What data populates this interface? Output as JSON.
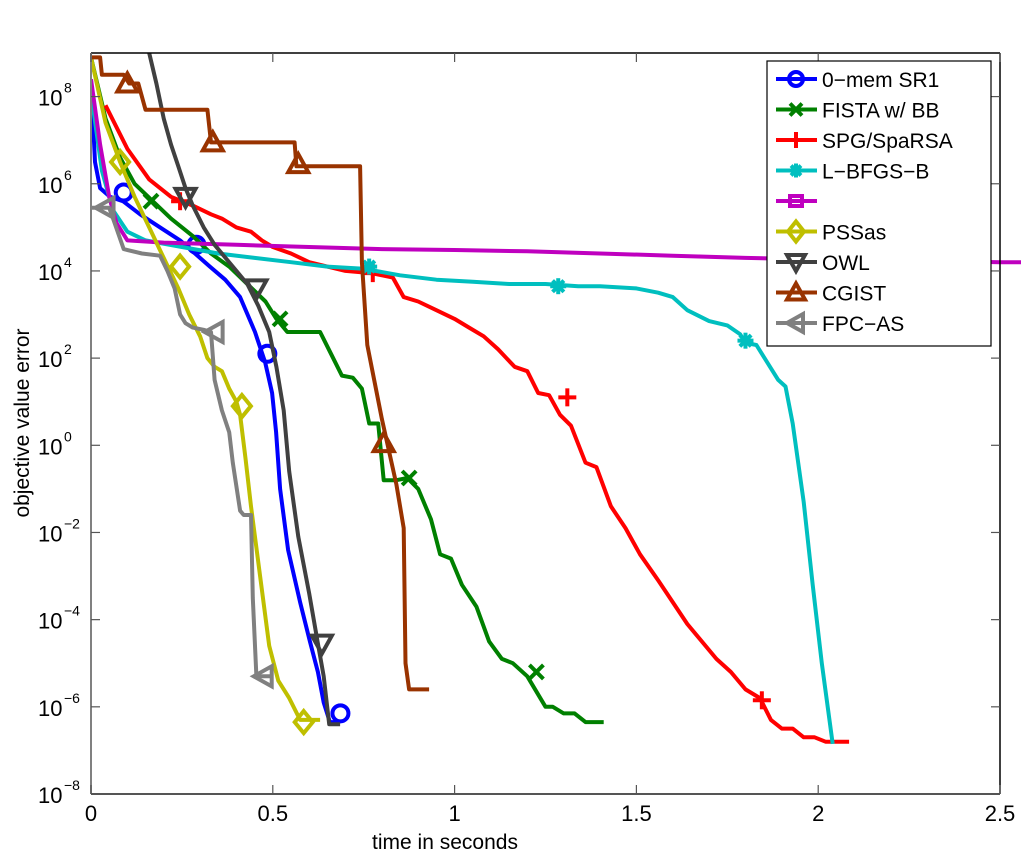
{
  "chart_data": {
    "type": "line",
    "title": "",
    "xlabel": "time in seconds",
    "ylabel": "objective value error",
    "xscale": "linear",
    "yscale": "log",
    "xlim": [
      0,
      2.5
    ],
    "ylim": [
      1e-08,
      1000000000.0
    ],
    "xticks": [
      0,
      0.5,
      1,
      1.5,
      2,
      2.5
    ],
    "xtick_labels": [
      "0",
      "0.5",
      "1",
      "1.5",
      "2",
      "2.5"
    ],
    "yticks_exponent": [
      -8,
      -6,
      -4,
      -2,
      0,
      2,
      4,
      6,
      8
    ],
    "ytick_labels": [
      "10^-8",
      "10^-6",
      "10^-4",
      "10^-2",
      "10^0",
      "10^2",
      "10^4",
      "10^6",
      "10^8"
    ],
    "grid": false,
    "legend_position": "upper right",
    "series": [
      {
        "name": "0−mem SR1",
        "color": "#0000ff",
        "marker": "circle",
        "points_log10": [
          [
            0,
            8.4
          ],
          [
            0.011,
            6.5
          ],
          [
            0.025,
            5.9
          ],
          [
            0.052,
            5.7
          ],
          [
            0.088,
            5.6
          ],
          [
            0.135,
            5.3
          ],
          [
            0.19,
            5.0
          ],
          [
            0.245,
            4.7
          ],
          [
            0.286,
            4.4
          ],
          [
            0.327,
            4.1
          ],
          [
            0.369,
            3.8
          ],
          [
            0.41,
            3.4
          ],
          [
            0.451,
            2.6
          ],
          [
            0.479,
            1.9
          ],
          [
            0.498,
            1.2
          ],
          [
            0.509,
            0.3
          ],
          [
            0.52,
            -1.0
          ],
          [
            0.542,
            -2.4
          ],
          [
            0.575,
            -3.6
          ],
          [
            0.602,
            -4.5
          ],
          [
            0.624,
            -5.2
          ],
          [
            0.64,
            -5.9
          ],
          [
            0.657,
            -6.35
          ],
          [
            0.685,
            -6.35
          ]
        ],
        "markers_log10": [
          [
            0.09,
            5.8
          ],
          [
            0.29,
            4.6
          ],
          [
            0.485,
            2.1
          ],
          [
            0.686,
            -6.15
          ]
        ]
      },
      {
        "name": "FISTA w/ BB",
        "color": "#008000",
        "marker": "x",
        "points_log10": [
          [
            0,
            8.9
          ],
          [
            0.04,
            7.5
          ],
          [
            0.08,
            6.6
          ],
          [
            0.12,
            6.0
          ],
          [
            0.17,
            5.6
          ],
          [
            0.22,
            5.2
          ],
          [
            0.28,
            4.8
          ],
          [
            0.33,
            4.4
          ],
          [
            0.38,
            4.1
          ],
          [
            0.43,
            3.7
          ],
          [
            0.48,
            3.3
          ],
          [
            0.51,
            2.9
          ],
          [
            0.54,
            2.6
          ],
          [
            0.63,
            2.6
          ],
          [
            0.66,
            2.1
          ],
          [
            0.69,
            1.6
          ],
          [
            0.72,
            1.55
          ],
          [
            0.745,
            1.3
          ],
          [
            0.765,
            0.5
          ],
          [
            0.79,
            0.5
          ],
          [
            0.805,
            -0.8
          ],
          [
            0.84,
            -0.8
          ],
          [
            0.87,
            -0.75
          ],
          [
            0.9,
            -1.0
          ],
          [
            0.935,
            -1.7
          ],
          [
            0.96,
            -2.5
          ],
          [
            0.99,
            -2.6
          ],
          [
            1.02,
            -3.2
          ],
          [
            1.06,
            -3.7
          ],
          [
            1.095,
            -4.5
          ],
          [
            1.13,
            -4.9
          ],
          [
            1.16,
            -5.0
          ],
          [
            1.2,
            -5.3
          ],
          [
            1.25,
            -6.0
          ],
          [
            1.27,
            -6.0
          ],
          [
            1.3,
            -6.15
          ],
          [
            1.33,
            -6.15
          ],
          [
            1.36,
            -6.35
          ],
          [
            1.41,
            -6.35
          ]
        ],
        "markers_log10": [
          [
            0.165,
            5.6
          ],
          [
            0.52,
            2.9
          ],
          [
            0.875,
            -0.75
          ],
          [
            1.225,
            -5.2
          ]
        ]
      },
      {
        "name": "SPG/SpaRSA",
        "color": "#ff0000",
        "marker": "plus",
        "points_log10": [
          [
            0.04,
            7.8
          ],
          [
            0.1,
            6.8
          ],
          [
            0.16,
            6.1
          ],
          [
            0.22,
            5.7
          ],
          [
            0.28,
            5.5
          ],
          [
            0.33,
            5.3
          ],
          [
            0.36,
            5.2
          ],
          [
            0.4,
            5.0
          ],
          [
            0.44,
            4.9
          ],
          [
            0.47,
            4.7
          ],
          [
            0.5,
            4.55
          ],
          [
            0.55,
            4.4
          ],
          [
            0.6,
            4.2
          ],
          [
            0.65,
            4.1
          ],
          [
            0.7,
            4.0
          ],
          [
            0.77,
            3.95
          ],
          [
            0.83,
            3.85
          ],
          [
            0.86,
            3.4
          ],
          [
            0.9,
            3.3
          ],
          [
            0.95,
            3.1
          ],
          [
            1.0,
            2.9
          ],
          [
            1.04,
            2.7
          ],
          [
            1.08,
            2.5
          ],
          [
            1.12,
            2.2
          ],
          [
            1.165,
            1.8
          ],
          [
            1.2,
            1.7
          ],
          [
            1.23,
            1.2
          ],
          [
            1.26,
            1.15
          ],
          [
            1.29,
            0.7
          ],
          [
            1.32,
            0.45
          ],
          [
            1.36,
            -0.4
          ],
          [
            1.39,
            -0.5
          ],
          [
            1.43,
            -1.4
          ],
          [
            1.47,
            -1.9
          ],
          [
            1.51,
            -2.5
          ],
          [
            1.56,
            -3.1
          ],
          [
            1.6,
            -3.6
          ],
          [
            1.64,
            -4.1
          ],
          [
            1.68,
            -4.5
          ],
          [
            1.72,
            -4.9
          ],
          [
            1.76,
            -5.2
          ],
          [
            1.8,
            -5.6
          ],
          [
            1.84,
            -5.8
          ],
          [
            1.87,
            -6.3
          ],
          [
            1.9,
            -6.5
          ],
          [
            1.93,
            -6.5
          ],
          [
            1.96,
            -6.7
          ],
          [
            1.99,
            -6.7
          ],
          [
            2.02,
            -6.8
          ],
          [
            2.085,
            -6.8
          ]
        ],
        "markers_log10": [
          [
            0.245,
            5.6
          ],
          [
            0.775,
            3.95
          ],
          [
            1.31,
            1.1
          ],
          [
            1.845,
            -5.85
          ]
        ]
      },
      {
        "name": "L−BFGS−B",
        "color": "#00bfbf",
        "marker": "asterisk",
        "points_log10": [
          [
            0,
            8.1
          ],
          [
            0.03,
            6.3
          ],
          [
            0.06,
            5.4
          ],
          [
            0.1,
            4.9
          ],
          [
            0.15,
            4.7
          ],
          [
            0.25,
            4.55
          ],
          [
            0.35,
            4.4
          ],
          [
            0.45,
            4.3
          ],
          [
            0.55,
            4.2
          ],
          [
            0.65,
            4.1
          ],
          [
            0.75,
            4.05
          ],
          [
            0.85,
            3.9
          ],
          [
            0.95,
            3.8
          ],
          [
            1.05,
            3.75
          ],
          [
            1.15,
            3.7
          ],
          [
            1.25,
            3.7
          ],
          [
            1.34,
            3.65
          ],
          [
            1.4,
            3.65
          ],
          [
            1.5,
            3.6
          ],
          [
            1.56,
            3.5
          ],
          [
            1.6,
            3.4
          ],
          [
            1.64,
            3.1
          ],
          [
            1.7,
            2.85
          ],
          [
            1.75,
            2.75
          ],
          [
            1.785,
            2.55
          ],
          [
            1.8,
            2.35
          ],
          [
            1.83,
            2.3
          ],
          [
            1.86,
            1.9
          ],
          [
            1.89,
            1.5
          ],
          [
            1.91,
            1.35
          ],
          [
            1.93,
            0.5
          ],
          [
            1.96,
            -1.3
          ],
          [
            1.985,
            -3.2
          ],
          [
            2.01,
            -5.0
          ],
          [
            2.04,
            -6.85
          ]
        ],
        "markers_log10": [
          [
            0.765,
            4.1
          ],
          [
            1.285,
            3.65
          ],
          [
            1.8,
            2.4
          ]
        ]
      },
      {
        "name": "",
        "color": "#bf00bf",
        "marker": "square",
        "points_log10": [
          [
            0,
            8.4
          ],
          [
            0.025,
            6.9
          ],
          [
            0.05,
            5.7
          ],
          [
            0.07,
            5.1
          ],
          [
            0.1,
            4.7
          ],
          [
            0.2,
            4.65
          ],
          [
            0.4,
            4.6
          ],
          [
            0.6,
            4.55
          ],
          [
            0.8,
            4.5
          ],
          [
            1.0,
            4.48
          ],
          [
            1.2,
            4.45
          ],
          [
            1.4,
            4.4
          ],
          [
            1.6,
            4.35
          ],
          [
            1.8,
            4.3
          ],
          [
            2.0,
            4.27
          ],
          [
            2.2,
            4.25
          ],
          [
            2.5,
            4.2
          ]
        ],
        "markers_log10": []
      },
      {
        "name": "PSSas",
        "color": "#bfbf00",
        "marker": "diamond",
        "points_log10": [
          [
            0,
            8.9
          ],
          [
            0.04,
            7.4
          ],
          [
            0.08,
            6.5
          ],
          [
            0.12,
            5.7
          ],
          [
            0.16,
            5.0
          ],
          [
            0.2,
            4.3
          ],
          [
            0.24,
            3.6
          ],
          [
            0.27,
            3.0
          ],
          [
            0.3,
            2.5
          ],
          [
            0.32,
            2.0
          ],
          [
            0.34,
            1.8
          ],
          [
            0.36,
            1.7
          ],
          [
            0.38,
            1.3
          ],
          [
            0.4,
            1.0
          ],
          [
            0.41,
            0.7
          ],
          [
            0.425,
            -0.3
          ],
          [
            0.44,
            -1.4
          ],
          [
            0.465,
            -3.0
          ],
          [
            0.49,
            -4.6
          ],
          [
            0.515,
            -5.4
          ],
          [
            0.545,
            -5.8
          ],
          [
            0.575,
            -6.3
          ],
          [
            0.63,
            -6.3
          ]
        ],
        "markers_log10": [
          [
            0.08,
            6.5
          ],
          [
            0.245,
            4.1
          ],
          [
            0.415,
            0.9
          ],
          [
            0.585,
            -6.35
          ]
        ]
      },
      {
        "name": "OWL",
        "color": "#404040",
        "marker": "triangle-down",
        "points_log10": [
          [
            0.16,
            9.0
          ],
          [
            0.18,
            8.3
          ],
          [
            0.2,
            7.5
          ],
          [
            0.22,
            6.9
          ],
          [
            0.24,
            6.4
          ],
          [
            0.26,
            5.9
          ],
          [
            0.28,
            5.5
          ],
          [
            0.31,
            5.0
          ],
          [
            0.34,
            4.6
          ],
          [
            0.37,
            4.3
          ],
          [
            0.4,
            4.0
          ],
          [
            0.43,
            3.7
          ],
          [
            0.46,
            3.2
          ],
          [
            0.49,
            2.6
          ],
          [
            0.51,
            1.8
          ],
          [
            0.53,
            0.8
          ],
          [
            0.545,
            -0.6
          ],
          [
            0.57,
            -2.1
          ],
          [
            0.6,
            -3.4
          ],
          [
            0.625,
            -4.6
          ],
          [
            0.64,
            -5.3
          ],
          [
            0.655,
            -6.4
          ],
          [
            0.685,
            -6.4
          ]
        ],
        "markers_log10": [
          [
            0.26,
            5.7
          ],
          [
            0.455,
            3.6
          ],
          [
            0.635,
            -4.55
          ]
        ]
      },
      {
        "name": "CGIST",
        "color": "#993300",
        "marker": "triangle-up",
        "points_log10": [
          [
            0,
            8.9
          ],
          [
            0.025,
            8.9
          ],
          [
            0.03,
            8.5
          ],
          [
            0.09,
            8.5
          ],
          [
            0.105,
            8.3
          ],
          [
            0.13,
            8.3
          ],
          [
            0.15,
            7.7
          ],
          [
            0.32,
            7.7
          ],
          [
            0.33,
            6.95
          ],
          [
            0.56,
            6.95
          ],
          [
            0.565,
            6.4
          ],
          [
            0.74,
            6.4
          ],
          [
            0.745,
            4.2
          ],
          [
            0.76,
            2.3
          ],
          [
            0.8,
            0.6
          ],
          [
            0.84,
            -0.9
          ],
          [
            0.86,
            -1.9
          ],
          [
            0.865,
            -5.0
          ],
          [
            0.875,
            -5.6
          ],
          [
            0.89,
            -5.6
          ],
          [
            0.93,
            -5.6
          ]
        ],
        "markers_log10": [
          [
            0.1,
            8.3
          ],
          [
            0.335,
            6.95
          ],
          [
            0.57,
            6.45
          ],
          [
            0.805,
            0.05
          ]
        ]
      },
      {
        "name": "FPC−AS",
        "color": "#808080",
        "marker": "triangle-left",
        "points_log10": [
          [
            0,
            5.45
          ],
          [
            0.05,
            5.45
          ],
          [
            0.065,
            5.1
          ],
          [
            0.09,
            4.5
          ],
          [
            0.14,
            4.4
          ],
          [
            0.19,
            4.35
          ],
          [
            0.21,
            4.0
          ],
          [
            0.23,
            3.6
          ],
          [
            0.245,
            3.0
          ],
          [
            0.26,
            2.8
          ],
          [
            0.28,
            2.7
          ],
          [
            0.31,
            2.65
          ],
          [
            0.33,
            2.6
          ],
          [
            0.34,
            1.5
          ],
          [
            0.36,
            0.8
          ],
          [
            0.38,
            0.3
          ],
          [
            0.39,
            -0.4
          ],
          [
            0.41,
            -1.5
          ],
          [
            0.42,
            -1.6
          ],
          [
            0.44,
            -1.6
          ],
          [
            0.445,
            -3.5
          ],
          [
            0.455,
            -5.3
          ],
          [
            0.5,
            -5.3
          ]
        ],
        "markers_log10": [
          [
            0.04,
            5.45
          ],
          [
            0.34,
            2.6
          ],
          [
            0.475,
            -5.3
          ]
        ]
      }
    ]
  },
  "legend": {
    "items": [
      {
        "label": "0−mem SR1"
      },
      {
        "label": "FISTA w/ BB"
      },
      {
        "label": "SPG/SpaRSA"
      },
      {
        "label": "L−BFGS−B"
      },
      {
        "label": ""
      },
      {
        "label": "PSSas"
      },
      {
        "label": "OWL"
      },
      {
        "label": "CGIST"
      },
      {
        "label": "FPC−AS"
      }
    ]
  },
  "axes": {
    "xlabel": "time in seconds",
    "ylabel": "objective value error"
  }
}
